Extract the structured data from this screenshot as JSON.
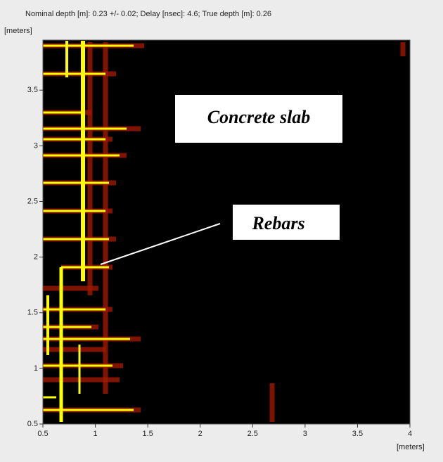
{
  "chart_data": {
    "type": "image",
    "title": "Nominal depth [m]: 0.23 +/- 0.02;  Delay [nsec]: 4.6;  True depth [m]: 0.26",
    "x_label": "[meters]",
    "y_label": "[meters]",
    "xlim": [
      0.5,
      4
    ],
    "ylim": [
      0.5,
      3.95
    ],
    "xticks": [
      0.5,
      1,
      1.5,
      2,
      2.5,
      3,
      3.5,
      4
    ],
    "yticks": [
      0.5,
      1,
      1.5,
      2,
      2.5,
      3,
      3.5
    ],
    "annotations": [
      "Concrete slab",
      "Rebars"
    ]
  }
}
